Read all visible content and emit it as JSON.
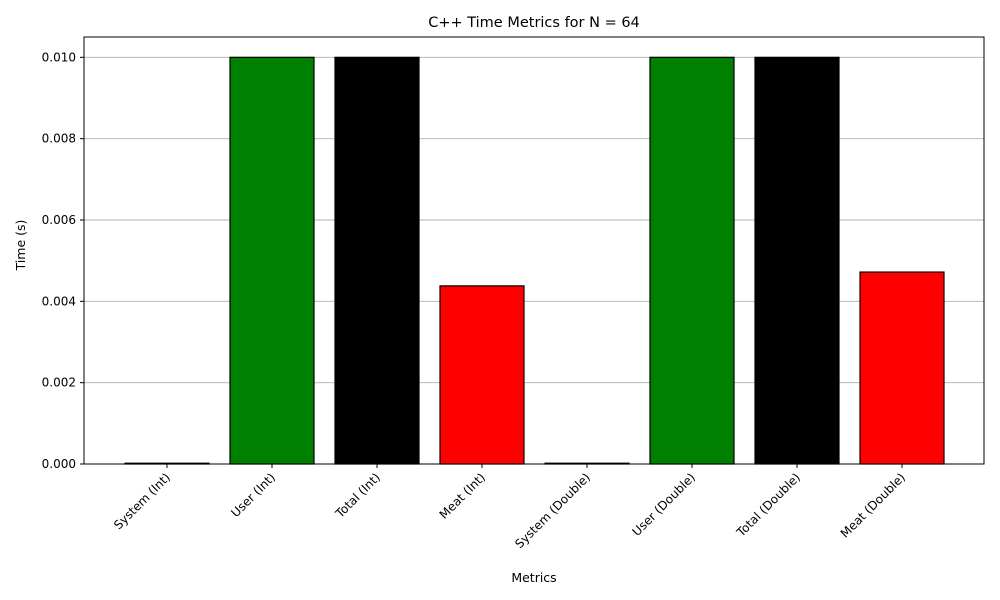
{
  "chart_data": {
    "type": "bar",
    "title": "C++ Time Metrics for N = 64",
    "xlabel": "Metrics",
    "ylabel": "Time (s)",
    "categories": [
      "System (Int)",
      "User (Int)",
      "Total (Int)",
      "Meat (Int)",
      "System (Double)",
      "User (Double)",
      "Total (Double)",
      "Meat (Double)"
    ],
    "values": [
      0.0,
      0.01,
      0.01,
      0.00438,
      0.0,
      0.01,
      0.01,
      0.00472
    ],
    "bar_colors": [
      "#0000ff",
      "#008000",
      "#000000",
      "#ff0000",
      "#0000ff",
      "#008000",
      "#000000",
      "#ff0000"
    ],
    "ylim": [
      0,
      0.0105
    ],
    "yticks": [
      0.0,
      0.002,
      0.004,
      0.006,
      0.008,
      0.01
    ],
    "ytick_labels": [
      "0.000",
      "0.002",
      "0.004",
      "0.006",
      "0.008",
      "0.010"
    ],
    "grid": "y-major",
    "legend": "none"
  }
}
